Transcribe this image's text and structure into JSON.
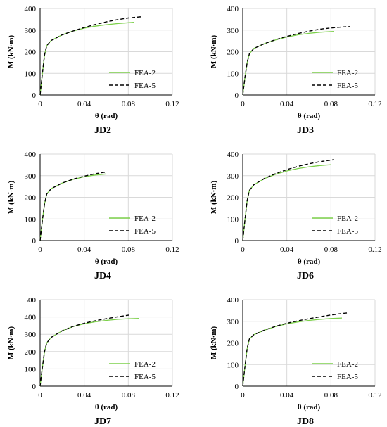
{
  "chart_data": [
    {
      "type": "line",
      "caption": "JD2",
      "xlabel": "θ (rad)",
      "ylabel": "M (kN·m)",
      "xlim": [
        0,
        0.12
      ],
      "ylim": [
        0,
        400
      ],
      "xticks": [
        "0",
        "0.04",
        "0.08",
        "0.12"
      ],
      "yticks": [
        "0",
        "100",
        "200",
        "300",
        "400"
      ],
      "grid": true,
      "legend_position": "right",
      "series": [
        {
          "name": "FEA-2",
          "color": "#7cd04a",
          "dash": "solid",
          "points": [
            [
              0,
              0
            ],
            [
              0.002,
              95
            ],
            [
              0.004,
              185
            ],
            [
              0.006,
              228
            ],
            [
              0.01,
              252
            ],
            [
              0.02,
              278
            ],
            [
              0.03,
              296
            ],
            [
              0.04,
              309
            ],
            [
              0.05,
              318
            ],
            [
              0.06,
              325
            ],
            [
              0.07,
              330
            ],
            [
              0.08,
              334
            ],
            [
              0.085,
              336
            ]
          ]
        },
        {
          "name": "FEA-5",
          "color": "#000000",
          "dash": "dashed",
          "points": [
            [
              0,
              0
            ],
            [
              0.002,
              95
            ],
            [
              0.004,
              185
            ],
            [
              0.006,
              228
            ],
            [
              0.01,
              252
            ],
            [
              0.02,
              278
            ],
            [
              0.03,
              296
            ],
            [
              0.04,
              312
            ],
            [
              0.05,
              326
            ],
            [
              0.06,
              338
            ],
            [
              0.07,
              348
            ],
            [
              0.08,
              356
            ],
            [
              0.09,
              361
            ],
            [
              0.093,
              362
            ]
          ]
        }
      ]
    },
    {
      "type": "line",
      "caption": "JD3",
      "xlabel": "θ (rad)",
      "ylabel": "M (kN·m)",
      "xlim": [
        0,
        0.12
      ],
      "ylim": [
        0,
        400
      ],
      "xticks": [
        "0",
        "0.04",
        "0.08",
        "0.12"
      ],
      "yticks": [
        "0",
        "100",
        "200",
        "300",
        "400"
      ],
      "grid": true,
      "legend_position": "right",
      "series": [
        {
          "name": "FEA-2",
          "color": "#7cd04a",
          "dash": "solid",
          "points": [
            [
              0,
              0
            ],
            [
              0.002,
              80
            ],
            [
              0.004,
              150
            ],
            [
              0.006,
              190
            ],
            [
              0.01,
              215
            ],
            [
              0.02,
              238
            ],
            [
              0.03,
              255
            ],
            [
              0.04,
              268
            ],
            [
              0.05,
              278
            ],
            [
              0.06,
              285
            ],
            [
              0.07,
              290
            ],
            [
              0.08,
              293
            ],
            [
              0.083,
              294
            ]
          ]
        },
        {
          "name": "FEA-5",
          "color": "#000000",
          "dash": "dashed",
          "points": [
            [
              0,
              0
            ],
            [
              0.002,
              80
            ],
            [
              0.004,
              150
            ],
            [
              0.006,
              190
            ],
            [
              0.01,
              215
            ],
            [
              0.02,
              238
            ],
            [
              0.03,
              256
            ],
            [
              0.04,
              271
            ],
            [
              0.05,
              284
            ],
            [
              0.06,
              295
            ],
            [
              0.07,
              304
            ],
            [
              0.08,
              310
            ],
            [
              0.09,
              314
            ],
            [
              0.097,
              316
            ]
          ]
        }
      ]
    },
    {
      "type": "line",
      "caption": "JD4",
      "xlabel": "θ (rad)",
      "ylabel": "M (kN·m)",
      "xlim": [
        0,
        0.12
      ],
      "ylim": [
        0,
        400
      ],
      "xticks": [
        "0",
        "0.04",
        "0.08",
        "0.12"
      ],
      "yticks": [
        "0",
        "100",
        "200",
        "300",
        "400"
      ],
      "grid": true,
      "legend_position": "right",
      "series": [
        {
          "name": "FEA-2",
          "color": "#7cd04a",
          "dash": "solid",
          "points": [
            [
              0,
              0
            ],
            [
              0.002,
              90
            ],
            [
              0.004,
              170
            ],
            [
              0.006,
              215
            ],
            [
              0.01,
              240
            ],
            [
              0.02,
              266
            ],
            [
              0.03,
              283
            ],
            [
              0.04,
              295
            ],
            [
              0.05,
              303
            ],
            [
              0.06,
              308
            ]
          ]
        },
        {
          "name": "FEA-5",
          "color": "#000000",
          "dash": "dashed",
          "points": [
            [
              0,
              0
            ],
            [
              0.002,
              90
            ],
            [
              0.004,
              170
            ],
            [
              0.006,
              215
            ],
            [
              0.01,
              240
            ],
            [
              0.02,
              266
            ],
            [
              0.03,
              284
            ],
            [
              0.04,
              298
            ],
            [
              0.05,
              309
            ],
            [
              0.06,
              317
            ]
          ]
        }
      ]
    },
    {
      "type": "line",
      "caption": "JD6",
      "xlabel": "θ (rad)",
      "ylabel": "M (kN·m)",
      "xlim": [
        0,
        0.12
      ],
      "ylim": [
        0,
        400
      ],
      "xticks": [
        "0",
        "0.04",
        "0.08",
        "0.12"
      ],
      "yticks": [
        "0",
        "100",
        "200",
        "300",
        "400"
      ],
      "grid": true,
      "legend_position": "right",
      "series": [
        {
          "name": "FEA-2",
          "color": "#7cd04a",
          "dash": "solid",
          "points": [
            [
              0,
              0
            ],
            [
              0.002,
              95
            ],
            [
              0.004,
              185
            ],
            [
              0.006,
              232
            ],
            [
              0.01,
              258
            ],
            [
              0.02,
              287
            ],
            [
              0.03,
              307
            ],
            [
              0.04,
              322
            ],
            [
              0.05,
              333
            ],
            [
              0.06,
              341
            ],
            [
              0.07,
              347
            ],
            [
              0.08,
              351
            ]
          ]
        },
        {
          "name": "FEA-5",
          "color": "#000000",
          "dash": "dashed",
          "points": [
            [
              0,
              0
            ],
            [
              0.002,
              95
            ],
            [
              0.004,
              185
            ],
            [
              0.006,
              232
            ],
            [
              0.01,
              258
            ],
            [
              0.02,
              288
            ],
            [
              0.03,
              310
            ],
            [
              0.04,
              328
            ],
            [
              0.05,
              343
            ],
            [
              0.06,
              355
            ],
            [
              0.07,
              365
            ],
            [
              0.08,
              372
            ],
            [
              0.083,
              374
            ]
          ]
        }
      ]
    },
    {
      "type": "line",
      "caption": "JD7",
      "xlabel": "θ (rad)",
      "ylabel": "M (kN·m)",
      "xlim": [
        0,
        0.12
      ],
      "ylim": [
        0,
        500
      ],
      "xticks": [
        "0",
        "0.04",
        "0.08",
        "0.12"
      ],
      "yticks": [
        "0",
        "100",
        "200",
        "300",
        "400",
        "500"
      ],
      "grid": true,
      "legend_position": "right",
      "series": [
        {
          "name": "FEA-2",
          "color": "#7cd04a",
          "dash": "solid",
          "points": [
            [
              0,
              0
            ],
            [
              0.002,
              105
            ],
            [
              0.004,
              200
            ],
            [
              0.006,
              250
            ],
            [
              0.01,
              282
            ],
            [
              0.02,
              320
            ],
            [
              0.03,
              345
            ],
            [
              0.04,
              361
            ],
            [
              0.05,
              372
            ],
            [
              0.06,
              380
            ],
            [
              0.07,
              386
            ],
            [
              0.08,
              390
            ],
            [
              0.09,
              392
            ]
          ]
        },
        {
          "name": "FEA-5",
          "color": "#000000",
          "dash": "dashed",
          "points": [
            [
              0,
              0
            ],
            [
              0.002,
              105
            ],
            [
              0.004,
              200
            ],
            [
              0.006,
              250
            ],
            [
              0.01,
              282
            ],
            [
              0.02,
              320
            ],
            [
              0.03,
              346
            ],
            [
              0.04,
              364
            ],
            [
              0.05,
              378
            ],
            [
              0.06,
              390
            ],
            [
              0.07,
              401
            ],
            [
              0.08,
              410
            ],
            [
              0.081,
              411
            ]
          ]
        }
      ]
    },
    {
      "type": "line",
      "caption": "JD8",
      "xlabel": "θ (rad)",
      "ylabel": "M (kN·m)",
      "xlim": [
        0,
        0.12
      ],
      "ylim": [
        0,
        400
      ],
      "xticks": [
        "0",
        "0.04",
        "0.08",
        "0.12"
      ],
      "yticks": [
        "0",
        "100",
        "200",
        "300",
        "400"
      ],
      "grid": true,
      "legend_position": "right",
      "series": [
        {
          "name": "FEA-2",
          "color": "#7cd04a",
          "dash": "solid",
          "points": [
            [
              0,
              0
            ],
            [
              0.002,
              90
            ],
            [
              0.004,
              175
            ],
            [
              0.006,
              218
            ],
            [
              0.01,
              238
            ],
            [
              0.02,
              260
            ],
            [
              0.03,
              276
            ],
            [
              0.04,
              288
            ],
            [
              0.05,
              297
            ],
            [
              0.06,
              304
            ],
            [
              0.07,
              309
            ],
            [
              0.08,
              313
            ],
            [
              0.09,
              315
            ]
          ]
        },
        {
          "name": "FEA-5",
          "color": "#000000",
          "dash": "dashed",
          "points": [
            [
              0,
              0
            ],
            [
              0.002,
              90
            ],
            [
              0.004,
              175
            ],
            [
              0.006,
              218
            ],
            [
              0.01,
              238
            ],
            [
              0.02,
              260
            ],
            [
              0.03,
              277
            ],
            [
              0.04,
              291
            ],
            [
              0.05,
              302
            ],
            [
              0.06,
              312
            ],
            [
              0.07,
              321
            ],
            [
              0.08,
              329
            ],
            [
              0.09,
              336
            ],
            [
              0.095,
              339
            ]
          ]
        }
      ]
    }
  ]
}
